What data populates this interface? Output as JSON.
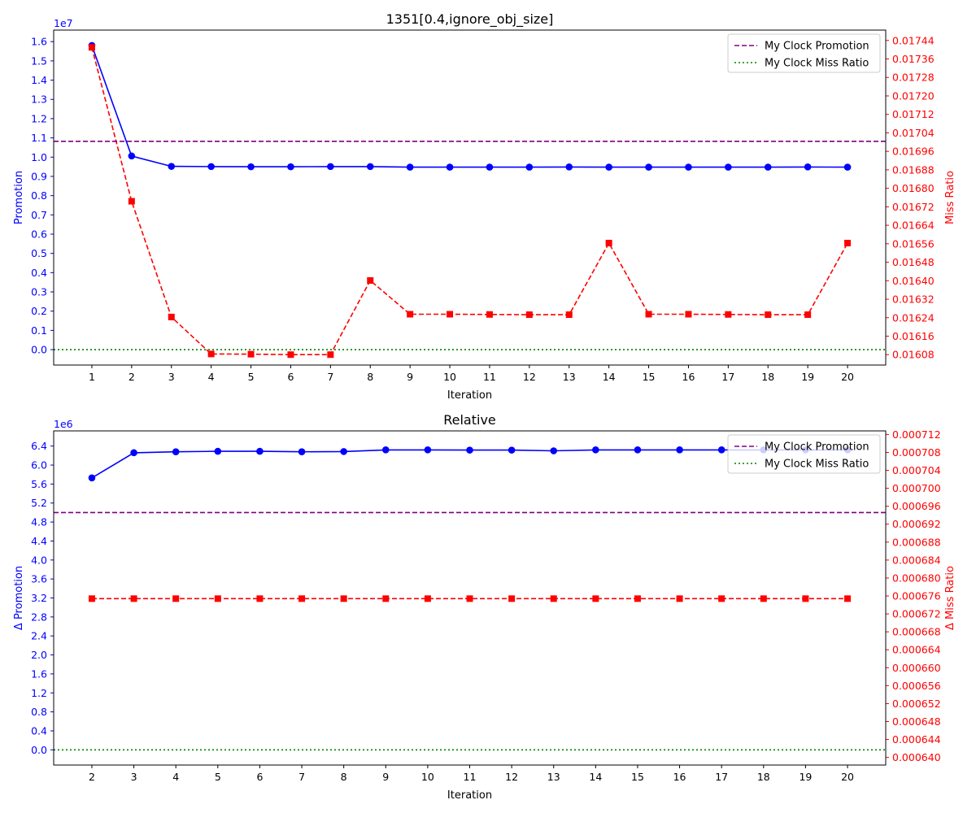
{
  "chart_data": [
    {
      "type": "line",
      "title": "1351[0.4,ignore_obj_size]",
      "xlabel": "Iteration",
      "ylabel_left": "Promotion",
      "ylabel_right": "Miss Ratio",
      "left_scale_text": "1e7",
      "left_axis_color": "#0000ff",
      "right_axis_color": "#ff0000",
      "x": [
        1,
        2,
        3,
        4,
        5,
        6,
        7,
        8,
        9,
        10,
        11,
        12,
        13,
        14,
        15,
        16,
        17,
        18,
        19,
        20
      ],
      "xlim": [
        0.04,
        20.96
      ],
      "left_ylim": [
        -0.08,
        1.66
      ],
      "right_ylim": [
        0.016035,
        0.017485
      ],
      "left_ticks": [
        "0.0",
        "0.1",
        "0.2",
        "0.3",
        "0.4",
        "0.5",
        "0.6",
        "0.7",
        "0.8",
        "0.9",
        "1.0",
        "1.1",
        "1.2",
        "1.3",
        "1.4",
        "1.5",
        "1.6"
      ],
      "right_ticks": [
        "0.01608",
        "0.01616",
        "0.01624",
        "0.01632",
        "0.01640",
        "0.01648",
        "0.01656",
        "0.01664",
        "0.01672",
        "0.01680",
        "0.01688",
        "0.01696",
        "0.01704",
        "0.01712",
        "0.01720",
        "0.01728",
        "0.01736",
        "0.01744"
      ],
      "series": [
        {
          "axis": "left",
          "color": "#0000ff",
          "style": "solid",
          "marker": "circle",
          "values": [
            1.58,
            1.006,
            0.952,
            0.951,
            0.95,
            0.95,
            0.951,
            0.951,
            0.948,
            0.948,
            0.948,
            0.948,
            0.949,
            0.948,
            0.948,
            0.948,
            0.948,
            0.948,
            0.949,
            0.948
          ]
        },
        {
          "axis": "right",
          "color": "#ff0000",
          "style": "dashed",
          "marker": "square",
          "values": [
            0.01741,
            0.016744,
            0.016243,
            0.016083,
            0.016082,
            0.01608,
            0.01608,
            0.016401,
            0.016255,
            0.016255,
            0.016254,
            0.016253,
            0.016253,
            0.016563,
            0.016255,
            0.016255,
            0.016254,
            0.016253,
            0.016253,
            0.016563
          ]
        },
        {
          "name": "My Clock Promotion",
          "axis": "left",
          "color": "#800080",
          "style": "dashed",
          "constant": 1.082
        },
        {
          "name": "My Clock Miss Ratio",
          "axis": "left",
          "color": "#008000",
          "style": "dotted",
          "constant": 0.0
        }
      ],
      "legend": [
        "My Clock Promotion",
        "My Clock Miss Ratio"
      ],
      "legend_position": "top-right",
      "grid": false
    },
    {
      "type": "line",
      "title": "Relative",
      "xlabel": "Iteration",
      "ylabel_left": "Δ Promotion",
      "ylabel_right": "Δ Miss Ratio",
      "left_scale_text": "1e6",
      "left_axis_color": "#0000ff",
      "right_axis_color": "#ff0000",
      "x": [
        2,
        3,
        4,
        5,
        6,
        7,
        8,
        9,
        10,
        11,
        12,
        13,
        14,
        15,
        16,
        17,
        18,
        19,
        20
      ],
      "xlim": [
        1.09,
        20.91
      ],
      "left_ylim": [
        -0.32,
        6.72
      ],
      "right_ylim": [
        0.0006383,
        0.0007128
      ],
      "left_ticks": [
        "0.0",
        "0.4",
        "0.8",
        "1.2",
        "1.6",
        "2.0",
        "2.4",
        "2.8",
        "3.2",
        "3.6",
        "4.0",
        "4.4",
        "4.8",
        "5.2",
        "5.6",
        "6.0",
        "6.4"
      ],
      "right_ticks": [
        "0.000640",
        "0.000644",
        "0.000648",
        "0.000652",
        "0.000656",
        "0.000660",
        "0.000664",
        "0.000668",
        "0.000672",
        "0.000676",
        "0.000680",
        "0.000684",
        "0.000688",
        "0.000692",
        "0.000696",
        "0.000700",
        "0.000704",
        "0.000708",
        "0.000712"
      ],
      "series": [
        {
          "axis": "left",
          "color": "#0000ff",
          "style": "solid",
          "marker": "circle",
          "values": [
            5.73,
            6.26,
            6.28,
            6.29,
            6.29,
            6.28,
            6.285,
            6.32,
            6.32,
            6.315,
            6.315,
            6.3,
            6.32,
            6.32,
            6.32,
            6.32,
            6.32,
            6.32,
            6.32
          ]
        },
        {
          "axis": "right",
          "color": "#ff0000",
          "style": "dashed",
          "marker": "square",
          "values": [
            0.0006754,
            0.0006754,
            0.0006754,
            0.0006754,
            0.0006754,
            0.0006754,
            0.0006754,
            0.0006754,
            0.0006754,
            0.0006754,
            0.0006754,
            0.0006754,
            0.0006754,
            0.0006754,
            0.0006754,
            0.0006754,
            0.0006754,
            0.0006754,
            0.0006754
          ]
        },
        {
          "name": "My Clock Promotion",
          "axis": "left",
          "color": "#800080",
          "style": "dashed",
          "constant": 5.0
        },
        {
          "name": "My Clock Miss Ratio",
          "axis": "left",
          "color": "#008000",
          "style": "dotted",
          "constant": 0.0
        }
      ],
      "legend": [
        "My Clock Promotion",
        "My Clock Miss Ratio"
      ],
      "legend_position": "top-right",
      "grid": false
    }
  ]
}
